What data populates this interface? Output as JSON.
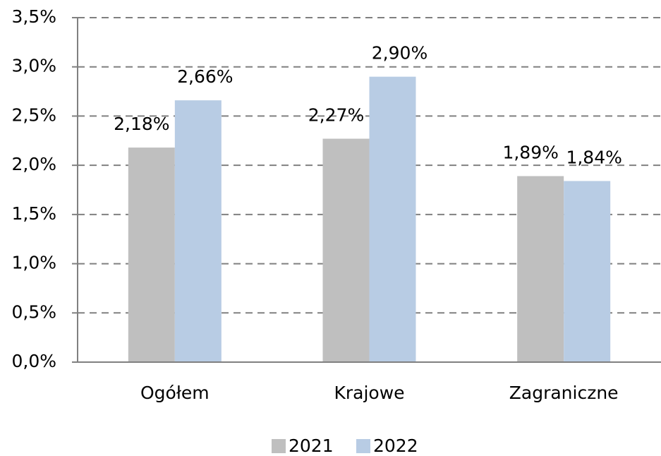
{
  "chart_data": {
    "type": "bar",
    "categories": [
      "Ogółem",
      "Krajowe",
      "Zagraniczne"
    ],
    "series": [
      {
        "name": "2021",
        "color": "#bfbfbf",
        "values": [
          2.18,
          2.27,
          1.89
        ],
        "value_labels": [
          "2,18%",
          "2,27%",
          "1,89%"
        ]
      },
      {
        "name": "2022",
        "color": "#b8cce4",
        "values": [
          2.66,
          2.9,
          1.84
        ],
        "value_labels": [
          "2,66%",
          "2,90%",
          "1,84%"
        ]
      }
    ],
    "ylim": [
      0,
      3.5
    ],
    "yticks": [
      {
        "value": 0,
        "label": "0,0%"
      },
      {
        "value": 0.5,
        "label": "0,5%"
      },
      {
        "value": 1,
        "label": "1,0%"
      },
      {
        "value": 1.5,
        "label": "1,5%"
      },
      {
        "value": 2,
        "label": "2,0%"
      },
      {
        "value": 2.5,
        "label": "2,5%"
      },
      {
        "value": 3,
        "label": "3,0%"
      },
      {
        "value": 3.5,
        "label": "3,5%"
      }
    ],
    "grid": true,
    "legend": "bottom"
  }
}
